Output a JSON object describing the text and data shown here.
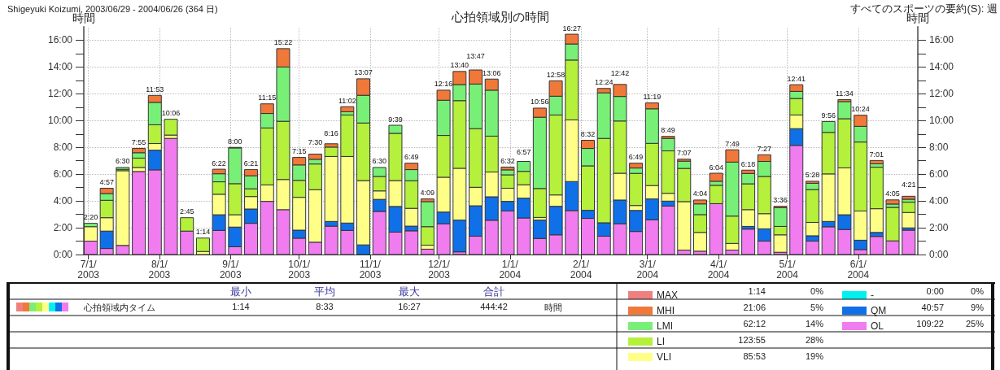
{
  "chart_data": {
    "type": "bar",
    "stacked": true,
    "title": "心拍領域別の時間",
    "subtitle": "Shigeyuki Koizumi, 2003/06/29 - 2004/06/26 (364 日)",
    "ylabel": "時間",
    "y2label": "時間",
    "x": [
      "2003-07-02",
      "2003-07-09",
      "2003-07-16",
      "2003-07-23",
      "2003-07-30",
      "2003-08-06",
      "2003-08-13",
      "2003-08-20",
      "2003-08-27",
      "2003-09-03",
      "2003-09-10",
      "2003-09-17",
      "2003-09-24",
      "2003-10-01",
      "2003-10-08",
      "2003-10-15",
      "2003-10-22",
      "2003-10-29",
      "2003-11-05",
      "2003-11-12",
      "2003-11-19",
      "2003-11-26",
      "2003-12-03",
      "2003-12-10",
      "2003-12-17",
      "2003-12-24",
      "2003-12-31",
      "2004-01-07",
      "2004-01-14",
      "2004-01-21",
      "2004-01-28",
      "2004-02-04",
      "2004-02-11",
      "2004-02-18",
      "2004-02-25",
      "2004-03-03",
      "2004-03-10",
      "2004-03-17",
      "2004-03-24",
      "2004-03-31",
      "2004-04-07",
      "2004-04-14",
      "2004-04-21",
      "2004-04-28",
      "2004-05-05",
      "2004-05-12",
      "2004-05-19",
      "2004-05-26",
      "2004-06-02",
      "2004-06-09",
      "2004-06-16",
      "2004-06-23"
    ],
    "series": [
      {
        "name": "OL",
        "color": "#f07cf0",
        "values": [
          1.0,
          0.45,
          0.68,
          6.2,
          6.32,
          8.67,
          1.75,
          0,
          1.8,
          0.58,
          2.33,
          3.97,
          3.35,
          1.22,
          0.92,
          2.12,
          1.8,
          0,
          3.22,
          1.67,
          1.77,
          0.4,
          2.3,
          0.2,
          1.37,
          2.56,
          3.25,
          2.73,
          1.2,
          1.47,
          3.28,
          2.7,
          1.37,
          2.3,
          1.72,
          2.6,
          3.62,
          0.33,
          0.25,
          3.8,
          0.33,
          1.9,
          1.0,
          0.17,
          8.15,
          1.0,
          2.07,
          1.87,
          0.37,
          1.35,
          1.02,
          1.82
        ]
      },
      {
        "name": "QM",
        "color": "#1070e8",
        "values": [
          0,
          1.3,
          0,
          0,
          1.47,
          0,
          0,
          0,
          1.17,
          1.47,
          1.07,
          0,
          0,
          0.6,
          0,
          0.35,
          0.55,
          0.72,
          0.9,
          1.92,
          0.35,
          0,
          0.87,
          2.37,
          2.27,
          1.75,
          0.72,
          1.48,
          1.37,
          2.13,
          2.17,
          0.6,
          1.0,
          1.77,
          1.57,
          1.55,
          0.37,
          0,
          0,
          0,
          0,
          0.2,
          0.92,
          0,
          1.25,
          0.4,
          0.4,
          1.1,
          0.7,
          0.3,
          0,
          0.17
        ]
      },
      {
        "name": "-",
        "color": "#00f0f0",
        "values": [
          0,
          0,
          0,
          0,
          0,
          0,
          0,
          0,
          0,
          0,
          0,
          0,
          0,
          0,
          0,
          0,
          0,
          0,
          0,
          0,
          0,
          0,
          0,
          0,
          0,
          0,
          0,
          0,
          0,
          0,
          0,
          0,
          0,
          0,
          0,
          0,
          0,
          0,
          0,
          0,
          0,
          0,
          0,
          0,
          0,
          0,
          0,
          0,
          0,
          0,
          0,
          0
        ]
      },
      {
        "name": "VLI",
        "color": "#ffff88",
        "values": [
          1.08,
          1.0,
          5.58,
          0.3,
          0.5,
          0.25,
          0,
          0.23,
          1.53,
          0.92,
          0.93,
          1.23,
          2.25,
          2.45,
          3.92,
          4.85,
          4.97,
          4.8,
          0.63,
          1.93,
          1.33,
          0.3,
          2.6,
          3.87,
          1.38,
          1.85,
          0.98,
          1.0,
          0.2,
          0.85,
          4.6,
          0,
          0,
          2.0,
          0.37,
          1.0,
          0.58,
          3.62,
          1.4,
          0,
          0.5,
          1.25,
          1.13,
          1.3,
          1.02,
          1.0,
          3.55,
          3.5,
          2.18,
          1.77,
          0,
          1.15
        ]
      },
      {
        "name": "LI",
        "color": "#b4f03c",
        "values": [
          0,
          1.3,
          0.1,
          0.7,
          1.4,
          1.18,
          1.0,
          1.0,
          0.93,
          2.32,
          0.58,
          4.25,
          4.35,
          1.27,
          1.92,
          0.7,
          3.1,
          4.3,
          1.08,
          3.53,
          2.06,
          1.38,
          3.12,
          5.05,
          4.38,
          2.68,
          1.0,
          1.0,
          2.16,
          5.97,
          4.47,
          3.32,
          6.3,
          3.9,
          2.4,
          3.15,
          3.17,
          2.48,
          1.33,
          1.37,
          2.04,
          1.93,
          2.78,
          0.63,
          1.23,
          2.45,
          3.1,
          3.67,
          5.15,
          3.1,
          2.5,
          0.77
        ]
      },
      {
        "name": "LMI",
        "color": "#78f078",
        "values": [
          0.25,
          0.5,
          0.14,
          0.4,
          1.67,
          0,
          0,
          0,
          0.6,
          2.67,
          0.97,
          1.08,
          4.05,
          1.15,
          0.35,
          0,
          0.24,
          2.07,
          0.67,
          0.6,
          0.83,
          1.87,
          2.63,
          1.2,
          3.33,
          3.43,
          0.37,
          0.74,
          5.32,
          1.4,
          1.2,
          1.3,
          3.4,
          1.83,
          0.4,
          2.58,
          0.93,
          0.54,
          0.8,
          0.3,
          4.03,
          0.77,
          1.12,
          1.4,
          0.53,
          0.47,
          0.81,
          1.28,
          1.17,
          0.25,
          0.25,
          0.22
        ]
      },
      {
        "name": "MHI",
        "color": "#f07838",
        "values": [
          0,
          0.4,
          0,
          0.32,
          0.52,
          0,
          0,
          0,
          0.34,
          0.04,
          0.47,
          0.72,
          1.37,
          0.56,
          0.39,
          0.25,
          0.38,
          1.23,
          0,
          0,
          0.48,
          0.2,
          0.75,
          0.98,
          1.05,
          0.83,
          0.21,
          0,
          0.68,
          1.15,
          0.73,
          0.61,
          0.33,
          0.9,
          0.36,
          0.44,
          0.15,
          0.15,
          0.29,
          0.6,
          0.92,
          0.25,
          0.5,
          0.1,
          0.5,
          0.15,
          0,
          0.15,
          0.83,
          0.25,
          0.31,
          0.22
        ]
      },
      {
        "name": "MAX",
        "color": "#f08080",
        "values": [
          0,
          0,
          0,
          0,
          0,
          0,
          0,
          0,
          0,
          0,
          0,
          0,
          0,
          0,
          0,
          0,
          0,
          0,
          0,
          0,
          0,
          0,
          0,
          0,
          0,
          0,
          0,
          0,
          0,
          0,
          0,
          0,
          0,
          0,
          0,
          0,
          0,
          0,
          0,
          0,
          0,
          0,
          0,
          0,
          0,
          0,
          0,
          0,
          0,
          0,
          0,
          0
        ]
      }
    ],
    "totals": [
      "2:20",
      "4:57",
      "6:30",
      "7:55",
      "11:53",
      "10:06",
      "2:45",
      "1:14",
      "6:22",
      "8:00",
      "6:21",
      "11:15",
      "15:22",
      "7:15",
      "7:30",
      "8:16",
      "11:02",
      "13:07",
      "6:30",
      "9:39",
      "6:49",
      "4:09",
      "12:16",
      "13:40",
      "13:47",
      "13:06",
      "6:32",
      "6:57",
      "10:56",
      "12:58",
      "16:27",
      "8:32",
      "12:24",
      "12:42",
      "6:49",
      "11:19",
      "8:49",
      "7:07",
      "4:04",
      "6:04",
      "7:49",
      "6:18",
      "7:27",
      "3:36",
      "12:41",
      "5:28",
      "9:56",
      "11:34",
      "10:24",
      "7:01",
      "4:05",
      "4:21"
    ],
    "xlim": [
      "2003-06-29",
      "2004-06-27"
    ],
    "xticks": [
      {
        "value": "2003-07-01",
        "label": "7/1/\n2003"
      },
      {
        "value": "2003-08-01",
        "label": "8/1/\n2003"
      },
      {
        "value": "2003-09-01",
        "label": "9/1/\n2003"
      },
      {
        "value": "2003-10-01",
        "label": "10/1/\n2003"
      },
      {
        "value": "2003-11-01",
        "label": "11/1/\n2003"
      },
      {
        "value": "2003-12-01",
        "label": "12/1/\n2003"
      },
      {
        "value": "2004-01-01",
        "label": "1/1/\n2004"
      },
      {
        "value": "2004-02-01",
        "label": "2/1/\n2004"
      },
      {
        "value": "2004-03-01",
        "label": "3/1/\n2004"
      },
      {
        "value": "2004-04-01",
        "label": "4/1/\n2004"
      },
      {
        "value": "2004-05-01",
        "label": "5/1/\n2004"
      },
      {
        "value": "2004-06-01",
        "label": "6/1/\n2004"
      }
    ],
    "ylim": [
      0,
      17
    ],
    "yticks": [
      {
        "value": 0,
        "label": "0:00"
      },
      {
        "value": 1,
        "label": null
      },
      {
        "value": 2,
        "label": "2:00"
      },
      {
        "value": 3,
        "label": null
      },
      {
        "value": 4,
        "label": "4:00"
      },
      {
        "value": 5,
        "label": null
      },
      {
        "value": 6,
        "label": "6:00"
      },
      {
        "value": 7,
        "label": null
      },
      {
        "value": 8,
        "label": "8:00"
      },
      {
        "value": 9,
        "label": null
      },
      {
        "value": 10,
        "label": "10:00"
      },
      {
        "value": 11,
        "label": null
      },
      {
        "value": 12,
        "label": "12:00"
      },
      {
        "value": 13,
        "label": null
      },
      {
        "value": 14,
        "label": "14:00"
      },
      {
        "value": 15,
        "label": null
      },
      {
        "value": 16,
        "label": "16:00"
      }
    ],
    "y2lim": [
      0,
      17
    ],
    "y2ticks": [
      {
        "value": 0,
        "label": "0:00"
      },
      {
        "value": 1,
        "label": null
      },
      {
        "value": 2,
        "label": "2:00"
      },
      {
        "value": 3,
        "label": null
      },
      {
        "value": 4,
        "label": "4:00"
      },
      {
        "value": 5,
        "label": null
      },
      {
        "value": 6,
        "label": "6:00"
      },
      {
        "value": 7,
        "label": null
      },
      {
        "value": 8,
        "label": "8:00"
      },
      {
        "value": 9,
        "label": null
      },
      {
        "value": 10,
        "label": "10:00"
      },
      {
        "value": 11,
        "label": null
      },
      {
        "value": 12,
        "label": "12:00"
      },
      {
        "value": 13,
        "label": null
      },
      {
        "value": 14,
        "label": "14:00"
      },
      {
        "value": 15,
        "label": null
      },
      {
        "value": 16,
        "label": "16:00"
      }
    ],
    "grid": true,
    "legend": "bottom right",
    "annotations": [
      "すべてのスポーツの要約(S): 週",
      "最小",
      "平均",
      "最大",
      "合計",
      "心拍領域内タイム",
      "1:14",
      "8:33",
      "16:27",
      "444:42",
      "時間",
      "1:14",
      "0%",
      "21:06",
      "5%",
      "62:12",
      "14%",
      "123:55",
      "28%",
      "85:53",
      "19%",
      "0:00",
      "0%",
      "40:57",
      "9%",
      "109:22",
      "25%"
    ]
  }
}
